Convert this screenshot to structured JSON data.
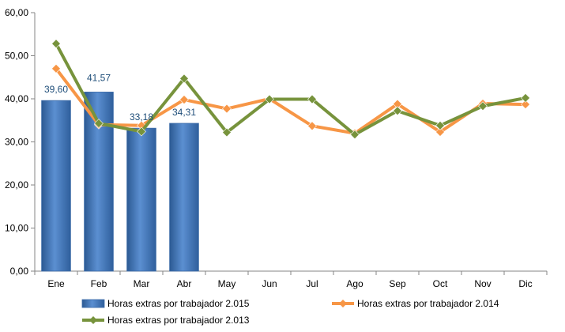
{
  "chart_data": {
    "type": "bar",
    "categories": [
      "Ene",
      "Feb",
      "Mar",
      "Abr",
      "May",
      "Jun",
      "Jul",
      "Ago",
      "Sep",
      "Oct",
      "Nov",
      "Dic"
    ],
    "ylim": [
      0,
      60
    ],
    "yticks": [
      "0,00",
      "10,00",
      "20,00",
      "30,00",
      "40,00",
      "50,00",
      "60,00"
    ],
    "legend_position": "bottom",
    "grid": false,
    "series": [
      {
        "name": "Horas extras por trabajador 2.015",
        "type": "bar",
        "color": "#4f81bd",
        "values": [
          39.6,
          41.57,
          33.18,
          34.31,
          null,
          null,
          null,
          null,
          null,
          null,
          null,
          null
        ],
        "labels": [
          "39,60",
          "41,57",
          "33,18",
          "34,31"
        ]
      },
      {
        "name": "Horas extras por trabajador 2.014",
        "type": "line",
        "color": "#f79646",
        "values": [
          47.0,
          34.0,
          33.8,
          39.8,
          37.7,
          40.0,
          33.7,
          32.0,
          38.8,
          32.3,
          38.9,
          38.7
        ]
      },
      {
        "name": "Horas extras por trabajador 2.013",
        "type": "line",
        "color": "#77933c",
        "values": [
          52.8,
          34.3,
          32.4,
          44.7,
          32.2,
          39.9,
          39.9,
          31.7,
          37.2,
          33.8,
          38.3,
          40.2
        ]
      }
    ]
  }
}
